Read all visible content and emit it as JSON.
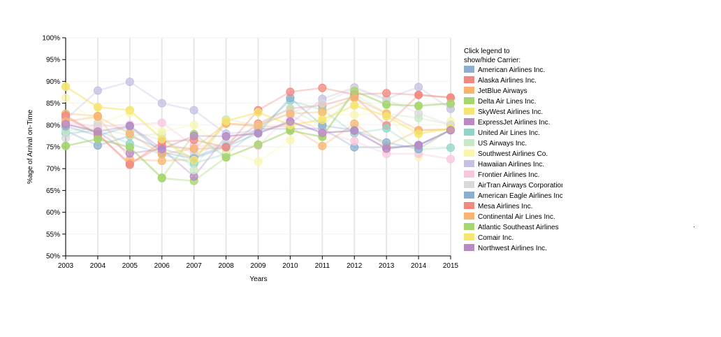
{
  "chart_data": {
    "type": "line",
    "title": "",
    "xlabel": "Years",
    "ylabel": "%age of Arrival on-Time",
    "x": [
      "2003",
      "2004",
      "2005",
      "2006",
      "2007",
      "2008",
      "2009",
      "2010",
      "2011",
      "2012",
      "2013",
      "2014",
      "2015"
    ],
    "ylim": [
      0.5,
      1.0
    ],
    "ytick_labels": [
      "50%",
      "55%",
      "60%",
      "65%",
      "70%",
      "75%",
      "80%",
      "85%",
      "90%",
      "95%",
      "100%"
    ],
    "grid": "vertical and horizontal light gridlines",
    "legend_placement": "right",
    "legend_title": "Click legend to show/hide Carrier:",
    "series": [
      {
        "name": "American Airlines Inc.",
        "color": "#8dafcf",
        "values": [
          0.787,
          0.753,
          0.775,
          0.745,
          0.726,
          0.754,
          0.791,
          0.791,
          0.792,
          0.749,
          0.749,
          0.753,
          0.789
        ]
      },
      {
        "name": "Alaska Airlines Inc.",
        "color": "#f08a80",
        "values": [
          0.818,
          0.779,
          0.712,
          0.752,
          0.745,
          0.748,
          0.803,
          0.838,
          0.845,
          0.865,
          0.799,
          0.869,
          0.863
        ]
      },
      {
        "name": "JetBlue Airways",
        "color": "#f8b56f",
        "values": [
          0.826,
          0.821,
          0.721,
          0.718,
          0.721,
          0.803,
          0.797,
          0.796,
          0.752,
          0.803,
          0.752,
          0.788,
          0.79
        ]
      },
      {
        "name": "Delta Air Lines Inc.",
        "color": "#a7d56f",
        "values": [
          0.752,
          0.768,
          0.749,
          0.678,
          0.672,
          0.726,
          0.755,
          0.787,
          0.773,
          0.878,
          0.847,
          0.844,
          0.849
        ]
      },
      {
        "name": "SkyWest Airlines Inc.",
        "color": "#f5e671",
        "values": [
          0.888,
          0.841,
          0.834,
          0.768,
          0.72,
          0.809,
          0.829,
          0.8,
          0.812,
          0.845,
          0.82,
          0.78,
          0.792
        ]
      },
      {
        "name": "ExpressJet Airlines Inc.",
        "color": "#b98ac4",
        "values": [
          0.802,
          0.785,
          0.735,
          0.745,
          0.682,
          0.774,
          0.781,
          0.808,
          0.782,
          0.787,
          0.746,
          0.754,
          0.788
        ]
      },
      {
        "name": "United Air Lines Inc.",
        "color": "#92d5c8",
        "values": [
          0.781,
          0.787,
          0.757,
          0.733,
          0.712,
          0.734,
          0.79,
          0.856,
          0.835,
          0.781,
          0.792,
          0.744,
          0.748
        ]
      },
      {
        "name": "US Airways Inc.",
        "color": "#c9e8c4",
        "values": [
          0.787,
          0.793,
          0.776,
          0.779,
          0.697,
          0.813,
          0.799,
          0.838,
          0.797,
          0.871,
          0.826,
          0.816,
          0.801
        ]
      },
      {
        "name": "Southwest Airlines Co.",
        "color": "#f8f5b0",
        "values": [
          0.862,
          0.802,
          0.828,
          0.785,
          0.8,
          0.741,
          0.716,
          0.765,
          0.827,
          0.823,
          0.829,
          0.727,
          0.808
        ]
      },
      {
        "name": "Hawaiian Airlines Inc.",
        "color": "#c4c1e3",
        "values": [
          0.813,
          0.879,
          0.899,
          0.85,
          0.834,
          0.78,
          0.787,
          0.803,
          0.86,
          0.886,
          0.86,
          0.887,
          0.837
        ]
      },
      {
        "name": "Frontier Airlines Inc.",
        "color": "#f8c7df",
        "values": [
          0.806,
          0.797,
          0.801,
          0.805,
          0.753,
          0.751,
          0.752,
          0.823,
          0.784,
          0.763,
          0.734,
          0.734,
          0.722
        ]
      },
      {
        "name": "AirTran Airways Corporation",
        "color": "#d9d9d9",
        "values": [
          0.77,
          0.804,
          0.786,
          0.765,
          0.735,
          0.76,
          0.8,
          0.828,
          0.85,
          0.883,
          0.858,
          0.827,
          0.8
        ]
      },
      {
        "name": "American Eagle Airlines Inc.",
        "color": "#8dafcf",
        "values": [
          0.797,
          0.776,
          0.797,
          0.737,
          0.723,
          0.75,
          0.781,
          0.862,
          0.799,
          0.788,
          0.76,
          0.745,
          0.79
        ]
      },
      {
        "name": "Mesa Airlines Inc.",
        "color": "#f08a80",
        "values": [
          0.822,
          0.779,
          0.709,
          0.762,
          0.766,
          0.749,
          0.834,
          0.876,
          0.885,
          0.87,
          0.873,
          0.869,
          0.863
        ]
      },
      {
        "name": "Continental Air Lines Inc.",
        "color": "#f8b56f",
        "values": [
          0.808,
          0.819,
          0.78,
          0.733,
          0.746,
          0.804,
          0.799,
          0.826,
          0.83,
          0.862,
          0.826,
          0.788,
          0.79
        ]
      },
      {
        "name": "Atlantic Southeast Airlines",
        "color": "#a7d56f",
        "values": [
          0.752,
          0.768,
          0.749,
          0.679,
          0.779,
          0.726,
          0.755,
          0.787,
          0.773,
          0.878,
          0.847,
          0.844,
          0.849
        ]
      },
      {
        "name": "Comair Inc.",
        "color": "#f5e671",
        "values": [
          0.888,
          0.841,
          0.834,
          0.768,
          0.72,
          0.809,
          0.829,
          0.8,
          0.812,
          0.845,
          0.82,
          0.78,
          0.792
        ]
      },
      {
        "name": "Northwest Airlines Inc.",
        "color": "#b98ac4",
        "values": [
          0.802,
          0.785,
          0.798,
          0.745,
          0.775,
          0.774,
          0.781,
          0.808,
          0.782,
          0.787,
          0.746,
          0.754,
          0.788
        ]
      }
    ]
  }
}
